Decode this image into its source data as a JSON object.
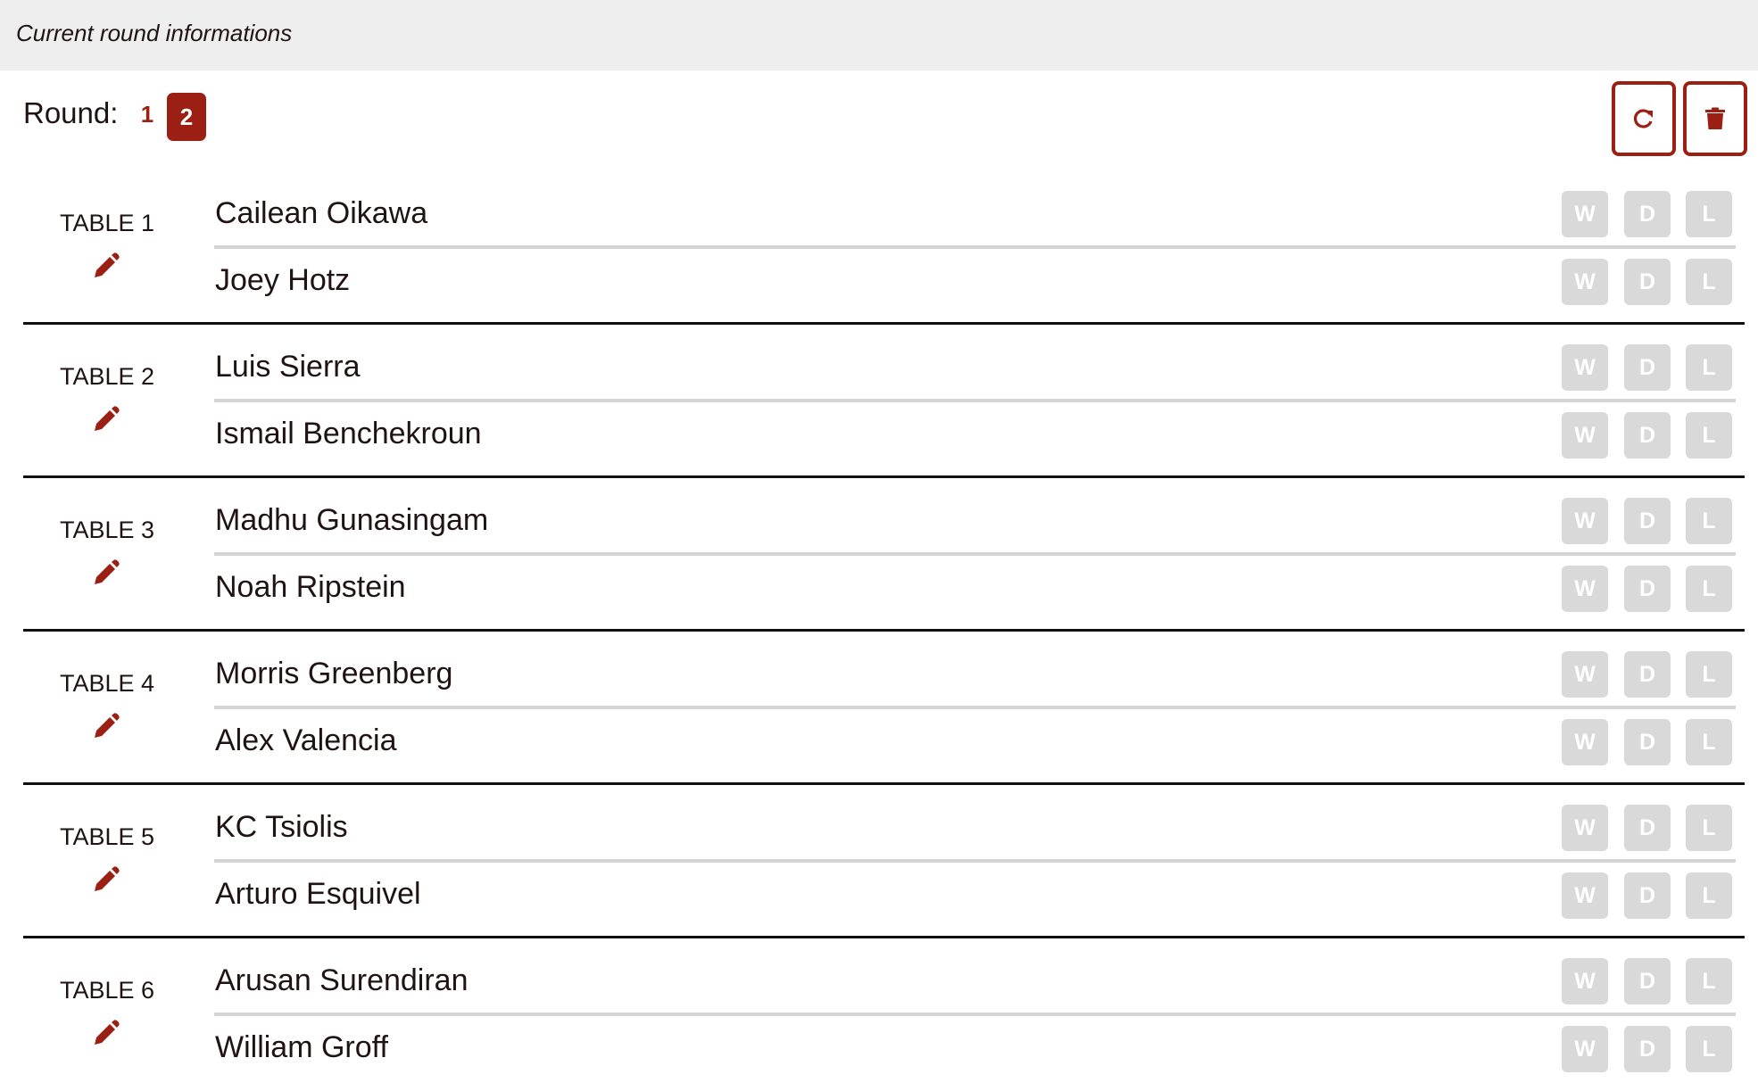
{
  "header": {
    "title": "Current round informations"
  },
  "round": {
    "label": "Round:",
    "rounds": [
      "1",
      "2"
    ],
    "active": "2"
  },
  "actions": {
    "refresh_icon": "refresh-icon",
    "delete_icon": "trash-icon"
  },
  "colors": {
    "accent": "#9b1f13",
    "result_button": "#d9d9d9",
    "header_bg": "#eeeeee"
  },
  "result_labels": {
    "win": "W",
    "draw": "D",
    "loss": "L"
  },
  "tables": [
    {
      "label": "TABLE 1",
      "players": [
        "Cailean Oikawa",
        "Joey Hotz"
      ]
    },
    {
      "label": "TABLE 2",
      "players": [
        "Luis Sierra",
        "Ismail Benchekroun"
      ]
    },
    {
      "label": "TABLE 3",
      "players": [
        "Madhu Gunasingam",
        "Noah Ripstein"
      ]
    },
    {
      "label": "TABLE 4",
      "players": [
        "Morris Greenberg",
        "Alex Valencia"
      ]
    },
    {
      "label": "TABLE 5",
      "players": [
        "KC Tsiolis",
        "Arturo Esquivel"
      ]
    },
    {
      "label": "TABLE 6",
      "players": [
        "Arusan Surendiran",
        "William Groff"
      ]
    }
  ]
}
